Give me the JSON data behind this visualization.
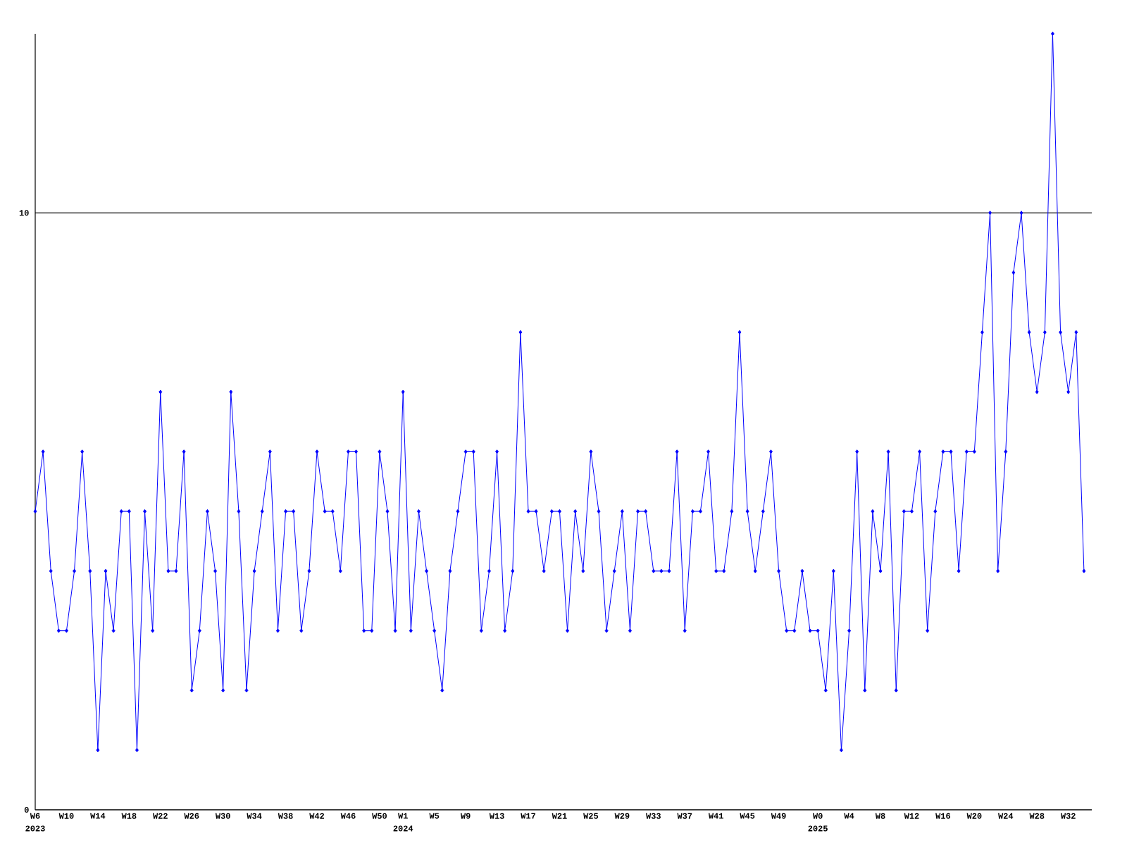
{
  "chart_data": {
    "type": "line",
    "categories": [
      "W6",
      null,
      null,
      null,
      "W10",
      null,
      null,
      null,
      "W14",
      null,
      null,
      null,
      "W18",
      null,
      null,
      null,
      "W22",
      null,
      null,
      null,
      "W26",
      null,
      null,
      null,
      "W30",
      null,
      null,
      null,
      "W34",
      null,
      null,
      null,
      "W38",
      null,
      null,
      null,
      "W42",
      null,
      null,
      null,
      "W46",
      null,
      null,
      null,
      "W50",
      null,
      null,
      "W1",
      null,
      null,
      null,
      "W5",
      null,
      null,
      null,
      "W9",
      null,
      null,
      null,
      "W13",
      null,
      null,
      null,
      "W17",
      null,
      null,
      null,
      "W21",
      null,
      null,
      null,
      "W25",
      null,
      null,
      null,
      "W29",
      null,
      null,
      null,
      "W33",
      null,
      null,
      null,
      "W37",
      null,
      null,
      null,
      "W41",
      null,
      null,
      null,
      "W45",
      null,
      null,
      null,
      "W49",
      null,
      null,
      null,
      null,
      "W0",
      null,
      null,
      null,
      "W4",
      null,
      null,
      null,
      "W8",
      null,
      null,
      null,
      "W12",
      null,
      null,
      null,
      "W16",
      null,
      null,
      null,
      "W20",
      null,
      null,
      null,
      "W24",
      null,
      null,
      null,
      "W28",
      null,
      null,
      null,
      "W32",
      null,
      null
    ],
    "values": [
      5,
      6,
      4,
      3,
      3,
      4,
      6,
      4,
      1,
      4,
      3,
      5,
      5,
      1,
      5,
      3,
      7,
      4,
      4,
      6,
      2,
      3,
      5,
      4,
      2,
      7,
      5,
      2,
      4,
      5,
      6,
      3,
      5,
      5,
      3,
      4,
      6,
      5,
      5,
      4,
      6,
      6,
      3,
      3,
      6,
      5,
      3,
      7,
      3,
      5,
      4,
      3,
      2,
      4,
      5,
      6,
      6,
      3,
      4,
      6,
      3,
      4,
      8,
      5,
      5,
      4,
      5,
      5,
      3,
      5,
      4,
      6,
      5,
      3,
      4,
      5,
      3,
      5,
      5,
      4,
      4,
      4,
      6,
      3,
      5,
      5,
      6,
      4,
      4,
      5,
      8,
      5,
      4,
      5,
      6,
      4,
      3,
      3,
      4,
      3,
      3,
      2,
      4,
      1,
      3,
      6,
      2,
      5,
      4,
      6,
      2,
      5,
      5,
      6,
      3,
      5,
      6,
      6,
      4,
      6,
      6,
      8,
      10,
      4,
      6,
      9,
      10,
      8,
      7,
      8,
      13,
      8,
      7,
      8,
      4
    ],
    "color": "#0000ff",
    "ylim": [
      0,
      13
    ],
    "yticks": [
      0,
      10
    ],
    "grid": "y",
    "marker": "diamond",
    "line_style": "solid",
    "annotations": [
      "2023",
      "2024",
      "2025"
    ]
  }
}
